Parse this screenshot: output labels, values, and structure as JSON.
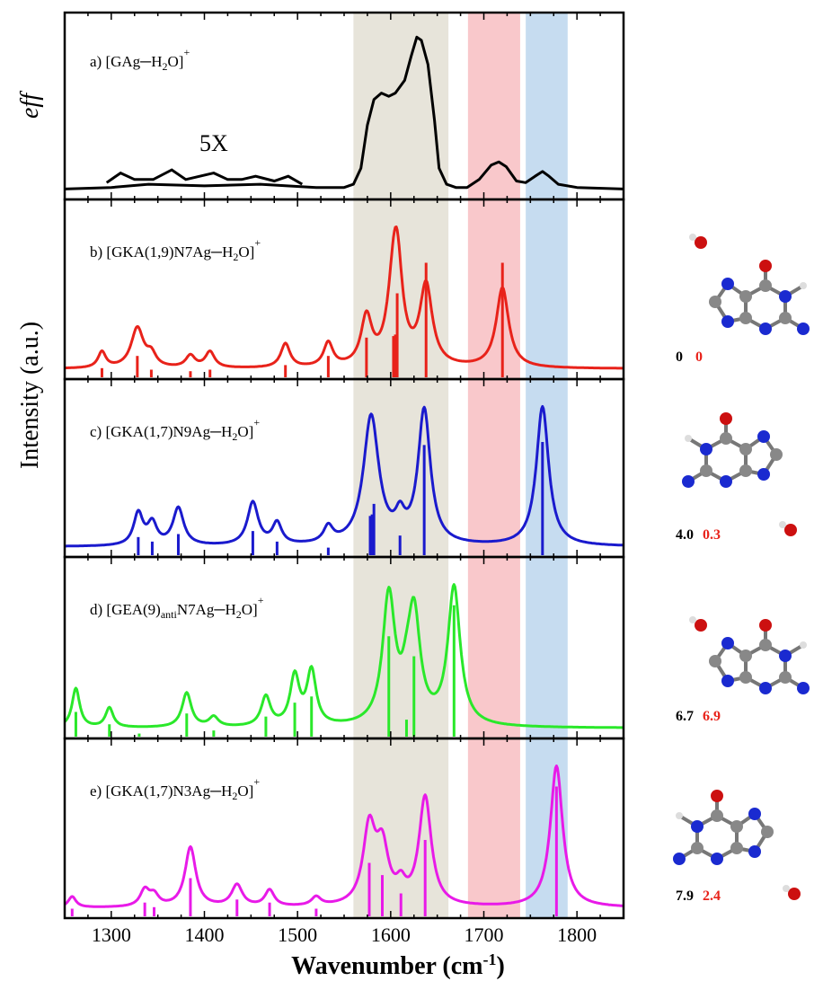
{
  "chart_data": {
    "type": "line",
    "xlabel": "Wavenumber (cm",
    "xlabel_sup": "-1",
    "xlabel_close": ")",
    "ylabel": "Intensity (a.u.)",
    "xlim": [
      1250,
      1850
    ],
    "xticks": [
      1300,
      1400,
      1500,
      1600,
      1700,
      1800
    ],
    "bands": [
      {
        "from": 1560,
        "to": 1662,
        "color": "#e7e4da"
      },
      {
        "from": 1683,
        "to": 1739,
        "color": "#f9c8cb"
      },
      {
        "from": 1745,
        "to": 1790,
        "color": "#c6dcf0"
      }
    ],
    "panels": [
      {
        "label_parts": [
          "a)  [GAg",
          "─",
          "H",
          "2",
          "O]",
          "+"
        ],
        "color": "#000000",
        "ylabel": "eff",
        "annotation": "5X",
        "experimental": [
          [
            1250,
            0.02
          ],
          [
            1300,
            0.03
          ],
          [
            1340,
            0.05
          ],
          [
            1400,
            0.04
          ],
          [
            1460,
            0.05
          ],
          [
            1520,
            0.03
          ],
          [
            1550,
            0.03
          ],
          [
            1560,
            0.05
          ],
          [
            1568,
            0.15
          ],
          [
            1575,
            0.42
          ],
          [
            1582,
            0.58
          ],
          [
            1590,
            0.62
          ],
          [
            1598,
            0.6
          ],
          [
            1605,
            0.62
          ],
          [
            1615,
            0.7
          ],
          [
            1622,
            0.85
          ],
          [
            1628,
            0.97
          ],
          [
            1633,
            0.95
          ],
          [
            1640,
            0.8
          ],
          [
            1647,
            0.45
          ],
          [
            1652,
            0.15
          ],
          [
            1660,
            0.05
          ],
          [
            1670,
            0.03
          ],
          [
            1682,
            0.03
          ],
          [
            1695,
            0.08
          ],
          [
            1708,
            0.17
          ],
          [
            1716,
            0.19
          ],
          [
            1724,
            0.16
          ],
          [
            1735,
            0.07
          ],
          [
            1745,
            0.06
          ],
          [
            1755,
            0.1
          ],
          [
            1763,
            0.13
          ],
          [
            1770,
            0.1
          ],
          [
            1780,
            0.05
          ],
          [
            1800,
            0.03
          ],
          [
            1850,
            0.02
          ]
        ],
        "experimental_5x": [
          [
            1295,
            0.06
          ],
          [
            1310,
            0.12
          ],
          [
            1325,
            0.08
          ],
          [
            1345,
            0.08
          ],
          [
            1365,
            0.14
          ],
          [
            1380,
            0.08
          ],
          [
            1395,
            0.1
          ],
          [
            1410,
            0.12
          ],
          [
            1425,
            0.08
          ],
          [
            1440,
            0.08
          ],
          [
            1455,
            0.1
          ],
          [
            1475,
            0.07
          ],
          [
            1490,
            0.1
          ],
          [
            1505,
            0.05
          ]
        ],
        "sticks": []
      },
      {
        "label_parts": [
          "b) [GKA(1,9)N7Ag",
          "─",
          "H",
          "2",
          "O]",
          "+"
        ],
        "color": "#e8221a",
        "energy": [
          "0",
          "0"
        ],
        "peaks": [
          [
            1290,
            5,
            0.2
          ],
          [
            1328,
            8,
            0.5
          ],
          [
            1343,
            6,
            0.15
          ],
          [
            1385,
            6,
            0.15
          ],
          [
            1406,
            6,
            0.2
          ],
          [
            1487,
            6,
            0.3
          ],
          [
            1533,
            6,
            0.3
          ],
          [
            1574,
            7,
            0.6
          ],
          [
            1603,
            8,
            0.8
          ],
          [
            1607,
            7,
            1.0
          ],
          [
            1638,
            8,
            1.0
          ],
          [
            1720,
            8,
            1.0
          ]
        ],
        "sticks": [
          [
            1290,
            0.06
          ],
          [
            1328,
            0.14
          ],
          [
            1343,
            0.05
          ],
          [
            1385,
            0.04
          ],
          [
            1406,
            0.05
          ],
          [
            1487,
            0.08
          ],
          [
            1533,
            0.14
          ],
          [
            1574,
            0.26
          ],
          [
            1603,
            0.27
          ],
          [
            1605,
            0.28
          ],
          [
            1607,
            0.55
          ],
          [
            1638,
            0.75
          ],
          [
            1720,
            0.75
          ]
        ]
      },
      {
        "label_parts": [
          "c) [GKA(1,7)N9Ag",
          "─",
          "H",
          "2",
          "O]",
          "+"
        ],
        "color": "#1a1acd",
        "energy": [
          "4.0",
          "0.3"
        ],
        "peaks": [
          [
            1329,
            6,
            0.3
          ],
          [
            1344,
            6,
            0.2
          ],
          [
            1372,
            7,
            0.35
          ],
          [
            1452,
            7,
            0.4
          ],
          [
            1478,
            6,
            0.2
          ],
          [
            1533,
            6,
            0.15
          ],
          [
            1579,
            10,
            1.2
          ],
          [
            1610,
            6,
            0.2
          ],
          [
            1636,
            8,
            1.25
          ],
          [
            1763,
            8,
            1.3
          ]
        ],
        "sticks": [
          [
            1329,
            0.12
          ],
          [
            1344,
            0.09
          ],
          [
            1372,
            0.14
          ],
          [
            1452,
            0.16
          ],
          [
            1478,
            0.09
          ],
          [
            1533,
            0.05
          ],
          [
            1578,
            0.26
          ],
          [
            1580,
            0.27
          ],
          [
            1582,
            0.34
          ],
          [
            1610,
            0.13
          ],
          [
            1636,
            0.73
          ],
          [
            1763,
            0.75
          ]
        ]
      },
      {
        "label_parts": [
          "d) [GEA(9)",
          "anti",
          "N7Ag",
          "─",
          "H",
          "2",
          "O]",
          "+"
        ],
        "color": "#2ae82a",
        "energy": [
          "6.7",
          "6.9"
        ],
        "peaks": [
          [
            1262,
            5,
            0.4
          ],
          [
            1298,
            5,
            0.2
          ],
          [
            1381,
            6,
            0.35
          ],
          [
            1410,
            6,
            0.1
          ],
          [
            1466,
            6,
            0.3
          ],
          [
            1497,
            6,
            0.5
          ],
          [
            1515,
            6,
            0.55
          ],
          [
            1598,
            8,
            1.3
          ],
          [
            1617,
            6,
            0.2
          ],
          [
            1625,
            8,
            1.1
          ],
          [
            1668,
            8,
            1.4
          ]
        ],
        "sticks": [
          [
            1262,
            0.16
          ],
          [
            1298,
            0.08
          ],
          [
            1330,
            0.02
          ],
          [
            1381,
            0.15
          ],
          [
            1410,
            0.04
          ],
          [
            1466,
            0.13
          ],
          [
            1497,
            0.22
          ],
          [
            1515,
            0.26
          ],
          [
            1598,
            0.65
          ],
          [
            1617,
            0.11
          ],
          [
            1625,
            0.52
          ],
          [
            1668,
            0.85
          ]
        ]
      },
      {
        "label_parts": [
          "e) [GKA(1,7)N3Ag",
          "─",
          "H",
          "2",
          "O]",
          "+"
        ],
        "color": "#e81ae8",
        "energy": [
          "7.9",
          "2.4"
        ],
        "peaks": [
          [
            1258,
            5,
            0.1
          ],
          [
            1336,
            6,
            0.15
          ],
          [
            1346,
            6,
            0.1
          ],
          [
            1385,
            7,
            0.55
          ],
          [
            1435,
            7,
            0.2
          ],
          [
            1470,
            6,
            0.15
          ],
          [
            1520,
            6,
            0.08
          ],
          [
            1577,
            8,
            0.7
          ],
          [
            1591,
            8,
            0.5
          ],
          [
            1611,
            6,
            0.15
          ],
          [
            1637,
            8,
            1.0
          ],
          [
            1778,
            8,
            1.3
          ]
        ],
        "sticks": [
          [
            1258,
            0.05
          ],
          [
            1336,
            0.09
          ],
          [
            1346,
            0.06
          ],
          [
            1385,
            0.25
          ],
          [
            1435,
            0.11
          ],
          [
            1470,
            0.09
          ],
          [
            1520,
            0.05
          ],
          [
            1577,
            0.35
          ],
          [
            1591,
            0.27
          ],
          [
            1611,
            0.15
          ],
          [
            1637,
            0.5
          ],
          [
            1778,
            0.85
          ]
        ]
      }
    ]
  }
}
